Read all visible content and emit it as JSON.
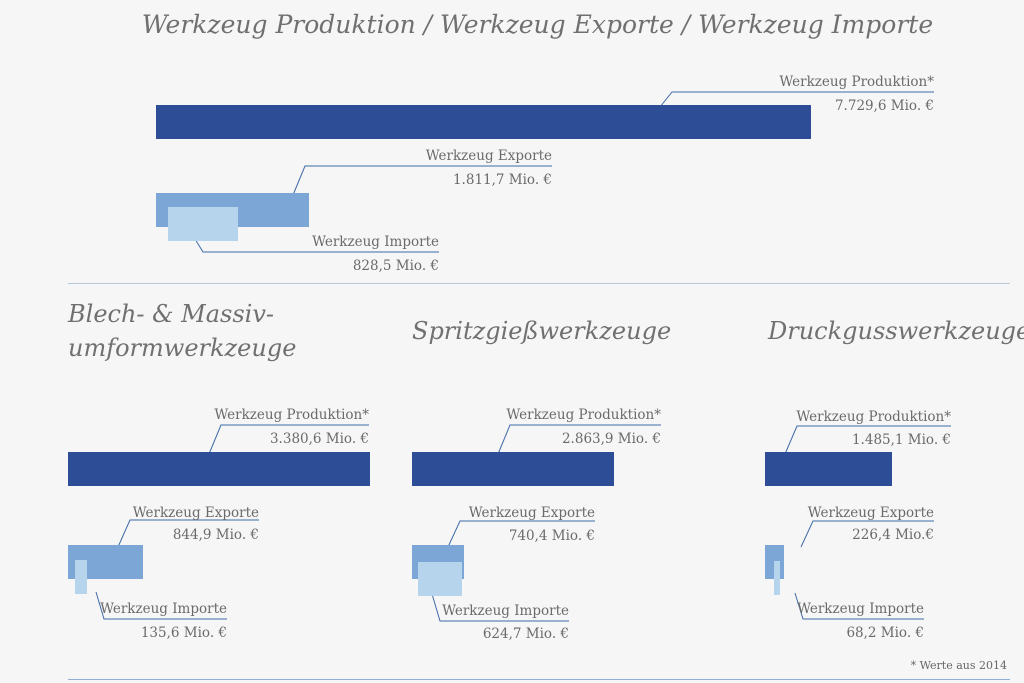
{
  "main_title": "Werkzeug Produktion / Werkzeug Exporte / Werkzeug Importe",
  "footnote": "* Werte aus 2014",
  "colors": {
    "produktion": "#2d4d97",
    "exporte": "#7ca6d6",
    "importe": "#b7d4ed",
    "leader": "#3f6aa8"
  },
  "chart_data": [
    {
      "type": "bar",
      "title": "",
      "unit": "Mio. €",
      "series": [
        {
          "name": "Werkzeug Produktion*",
          "value": 7729.6,
          "value_label": "7.729,6 Mio. €"
        },
        {
          "name": "Werkzeug Exporte",
          "value": 1811.7,
          "value_label": "1.811,7 Mio. €"
        },
        {
          "name": "Werkzeug Importe",
          "value": 828.5,
          "value_label": "828,5 Mio. €"
        }
      ]
    },
    {
      "type": "bar",
      "title": "Blech- & Massiv-umformwerkzeuge",
      "title_lines": [
        "Blech- & Massiv-",
        "umformwerkzeuge"
      ],
      "unit": "Mio. €",
      "series": [
        {
          "name": "Werkzeug Produktion*",
          "value": 3380.6,
          "value_label": "3.380,6 Mio. €"
        },
        {
          "name": "Werkzeug Exporte",
          "value": 844.9,
          "value_label": "844,9 Mio. €"
        },
        {
          "name": "Werkzeug Importe",
          "value": 135.6,
          "value_label": "135,6 Mio. €"
        }
      ]
    },
    {
      "type": "bar",
      "title": "Spritzgießwerkzeuge",
      "title_lines": [
        "Spritzgießwerkzeuge"
      ],
      "unit": "Mio. €",
      "series": [
        {
          "name": "Werkzeug Produktion*",
          "value": 2863.9,
          "value_label": "2.863,9 Mio. €"
        },
        {
          "name": "Werkzeug Exporte",
          "value": 740.4,
          "value_label": "740,4 Mio. €"
        },
        {
          "name": "Werkzeug Importe",
          "value": 624.7,
          "value_label": "624,7 Mio. €"
        }
      ]
    },
    {
      "type": "bar",
      "title": "Druckgusswerkzeuge",
      "title_lines": [
        "Druckgusswerkzeuge"
      ],
      "unit": "Mio. €",
      "series": [
        {
          "name": "Werkzeug Produktion*",
          "value": 1485.1,
          "value_label": "1.485,1 Mio. €"
        },
        {
          "name": "Werkzeug Exporte",
          "value": 226.4,
          "value_label": "226,4 Mio.€"
        },
        {
          "name": "Werkzeug Importe",
          "value": 68.2,
          "value_label": "68,2 Mio. €"
        }
      ]
    }
  ]
}
